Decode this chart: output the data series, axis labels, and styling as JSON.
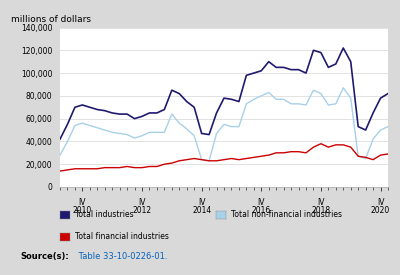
{
  "title": "millions of dollars",
  "bg_color": "#d9d9d9",
  "plot_bg_color": "#ffffff",
  "ylim": [
    0,
    140000
  ],
  "yticks": [
    0,
    20000,
    40000,
    60000,
    80000,
    100000,
    120000,
    140000
  ],
  "ytick_labels": [
    "0",
    "20,000",
    "40,000",
    "60,000",
    "80,000",
    "100,000",
    "120,000",
    "140,000"
  ],
  "total_industries": [
    42000,
    55000,
    70000,
    72000,
    70000,
    68000,
    67000,
    65000,
    64000,
    64000,
    60000,
    62000,
    65000,
    65000,
    68000,
    85000,
    82000,
    75000,
    70000,
    47000,
    46000,
    65000,
    78000,
    77000,
    75000,
    98000,
    100000,
    102000,
    110000,
    105000,
    105000,
    103000,
    103000,
    100000,
    120000,
    118000,
    105000,
    108000,
    122000,
    110000,
    53000,
    50000,
    65000,
    78000,
    82000
  ],
  "non_financial": [
    28000,
    40000,
    54000,
    56000,
    54000,
    52000,
    50000,
    48000,
    47000,
    46000,
    43000,
    45000,
    48000,
    48000,
    48000,
    64000,
    56000,
    51000,
    45000,
    24000,
    23000,
    47000,
    55000,
    53000,
    53000,
    73000,
    77000,
    80000,
    83000,
    77000,
    77000,
    73000,
    73000,
    72000,
    85000,
    82000,
    72000,
    73000,
    87000,
    78000,
    27000,
    25000,
    42000,
    50000,
    53000
  ],
  "financial": [
    14000,
    15000,
    16000,
    16000,
    16000,
    16000,
    17000,
    17000,
    17000,
    18000,
    17000,
    17000,
    18000,
    18000,
    20000,
    21000,
    23000,
    24000,
    25000,
    24000,
    23000,
    23000,
    24000,
    25000,
    24000,
    25000,
    26000,
    27000,
    28000,
    30000,
    30000,
    31000,
    31000,
    30000,
    35000,
    38000,
    35000,
    37000,
    37000,
    35000,
    27000,
    26000,
    24000,
    28000,
    29000
  ],
  "total_color": "#1f1a6e",
  "non_financial_color": "#a8d0e8",
  "financial_color": "#cc0000",
  "iv_positions": [
    3,
    11,
    19,
    27,
    35,
    43
  ],
  "year_labels": [
    "2010",
    "2012",
    "2014",
    "2016",
    "2018",
    "2020"
  ],
  "legend_row1_left_label": "Total industries",
  "legend_row1_right_label": "Total non-financial industries",
  "legend_row2_left_label": "Total financial industries",
  "source_bold": "Source(s):",
  "source_link": " Table 33-10-0226-01.",
  "source_link_color": "#0563C1"
}
